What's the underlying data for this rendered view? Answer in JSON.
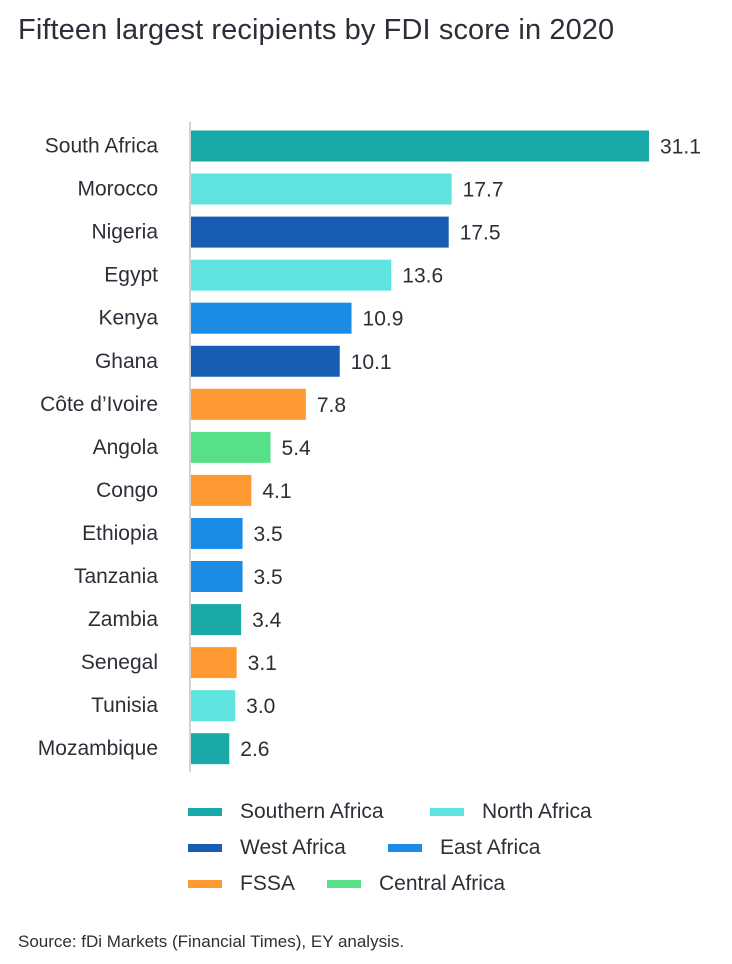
{
  "chart_data": {
    "type": "bar",
    "orientation": "horizontal",
    "title": "Fifteen largest recipients by FDI score in 2020",
    "categories": [
      "South Africa",
      "Morocco",
      "Nigeria",
      "Egypt",
      "Kenya",
      "Ghana",
      "Côte d’Ivoire",
      "Angola",
      "Congo",
      "Ethiopia",
      "Tanzania",
      "Zambia",
      "Senegal",
      "Tunisia",
      "Mozambique"
    ],
    "values": [
      31.1,
      17.7,
      17.5,
      13.6,
      10.9,
      10.1,
      7.8,
      5.4,
      4.1,
      3.5,
      3.5,
      3.4,
      3.1,
      3.0,
      2.6
    ],
    "value_labels": [
      "31.1",
      "17.7",
      "17.5",
      "13.6",
      "10.9",
      "10.1",
      "7.8",
      "5.4",
      "4.1",
      "3.5",
      "3.5",
      "3.4",
      "3.1",
      "3.0",
      "2.6"
    ],
    "regions": [
      "Southern Africa",
      "North Africa",
      "West Africa",
      "North Africa",
      "East Africa",
      "West Africa",
      "FSSA",
      "Central Africa",
      "FSSA",
      "East Africa",
      "East Africa",
      "Southern Africa",
      "FSSA",
      "North Africa",
      "Southern Africa"
    ],
    "xlim": [
      0,
      31.1
    ],
    "grid": false,
    "legend": [
      {
        "name": "Southern Africa",
        "color": "#1aa9a9"
      },
      {
        "name": "North Africa",
        "color": "#5ee3e0"
      },
      {
        "name": "West Africa",
        "color": "#185db4"
      },
      {
        "name": "East Africa",
        "color": "#1b8be5"
      },
      {
        "name": "FSSA",
        "color": "#ff9932"
      },
      {
        "name": "Central Africa",
        "color": "#57e088"
      }
    ],
    "legend_position": "bottom"
  },
  "source": "Source: fDi Markets (Financial Times), EY analysis."
}
